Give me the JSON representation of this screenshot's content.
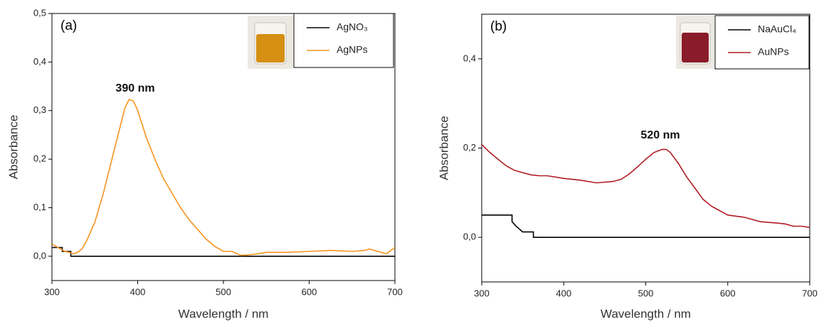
{
  "chart_data": [
    {
      "type": "line",
      "panel_label": "(a)",
      "annotation": "390 nm",
      "xlabel": "Wavelength / nm",
      "ylabel": "Absorbance",
      "legend": "upper right",
      "xlim": [
        300,
        700
      ],
      "xticks": [
        300,
        400,
        500,
        600,
        700
      ],
      "ylim": [
        -0.05,
        0.5
      ],
      "yticks": [
        {
          "value": 0,
          "label": "0,0"
        },
        {
          "value": 0.1,
          "label": "0,1"
        },
        {
          "value": 0.2,
          "label": "0,2"
        },
        {
          "value": 0.3,
          "label": "0,3"
        },
        {
          "value": 0.4,
          "label": "0,4"
        },
        {
          "value": 0.5,
          "label": "0,5"
        }
      ],
      "series": [
        {
          "name": "AgNO₃",
          "color": "#000000",
          "x": [
            300,
            312,
            312,
            322,
            322,
            700
          ],
          "values": [
            0.018,
            0.018,
            0.01,
            0.01,
            0,
            0
          ]
        },
        {
          "name": "AgNPs",
          "color": "#f7931e",
          "x": [
            300,
            305,
            310,
            315,
            320,
            325,
            330,
            335,
            340,
            350,
            360,
            370,
            380,
            385,
            390,
            395,
            400,
            410,
            420,
            430,
            440,
            450,
            460,
            470,
            480,
            490,
            500,
            510,
            520,
            530,
            540,
            550,
            575,
            600,
            625,
            650,
            665,
            670,
            680,
            690,
            700
          ],
          "values": [
            0.025,
            0.02,
            0.015,
            0.01,
            0.008,
            0.005,
            0.008,
            0.015,
            0.03,
            0.07,
            0.13,
            0.2,
            0.27,
            0.305,
            0.323,
            0.32,
            0.3,
            0.245,
            0.2,
            0.16,
            0.13,
            0.1,
            0.075,
            0.055,
            0.035,
            0.02,
            0.01,
            0.01,
            0.002,
            0.003,
            0.005,
            0.008,
            0.008,
            0.01,
            0.012,
            0.01,
            0.012,
            0.015,
            0.01,
            0.005,
            0.018
          ]
        }
      ]
    },
    {
      "type": "line",
      "panel_label": "(b)",
      "annotation": "520 nm",
      "xlabel": "Wavelength / nm",
      "ylabel": "Absorbance",
      "legend": "upper right",
      "xlim": [
        300,
        700
      ],
      "xticks": [
        300,
        400,
        500,
        600,
        700
      ],
      "ylim": [
        -0.1,
        0.5
      ],
      "yticks": [
        {
          "value": 0,
          "label": "0,0"
        },
        {
          "value": 0.2,
          "label": "0,2"
        },
        {
          "value": 0.4,
          "label": "0,4"
        }
      ],
      "series": [
        {
          "name": "NaAuCl₄",
          "color": "#000000",
          "x": [
            300,
            337,
            337,
            342,
            345,
            350,
            363,
            363,
            700
          ],
          "values": [
            0.05,
            0.05,
            0.035,
            0.025,
            0.02,
            0.012,
            0.012,
            0,
            0
          ]
        },
        {
          "name": "AuNPs",
          "color": "#b01c24",
          "x": [
            300,
            310,
            320,
            330,
            340,
            350,
            360,
            370,
            380,
            400,
            420,
            440,
            460,
            470,
            480,
            490,
            500,
            510,
            520,
            525,
            530,
            540,
            550,
            560,
            570,
            580,
            590,
            600,
            620,
            640,
            660,
            670,
            680,
            690,
            700
          ],
          "values": [
            0.208,
            0.19,
            0.175,
            0.16,
            0.15,
            0.145,
            0.14,
            0.138,
            0.138,
            0.132,
            0.128,
            0.122,
            0.125,
            0.13,
            0.142,
            0.158,
            0.175,
            0.19,
            0.197,
            0.197,
            0.19,
            0.165,
            0.135,
            0.11,
            0.085,
            0.07,
            0.06,
            0.05,
            0.045,
            0.035,
            0.032,
            0.03,
            0.025,
            0.025,
            0.022
          ]
        }
      ]
    }
  ]
}
